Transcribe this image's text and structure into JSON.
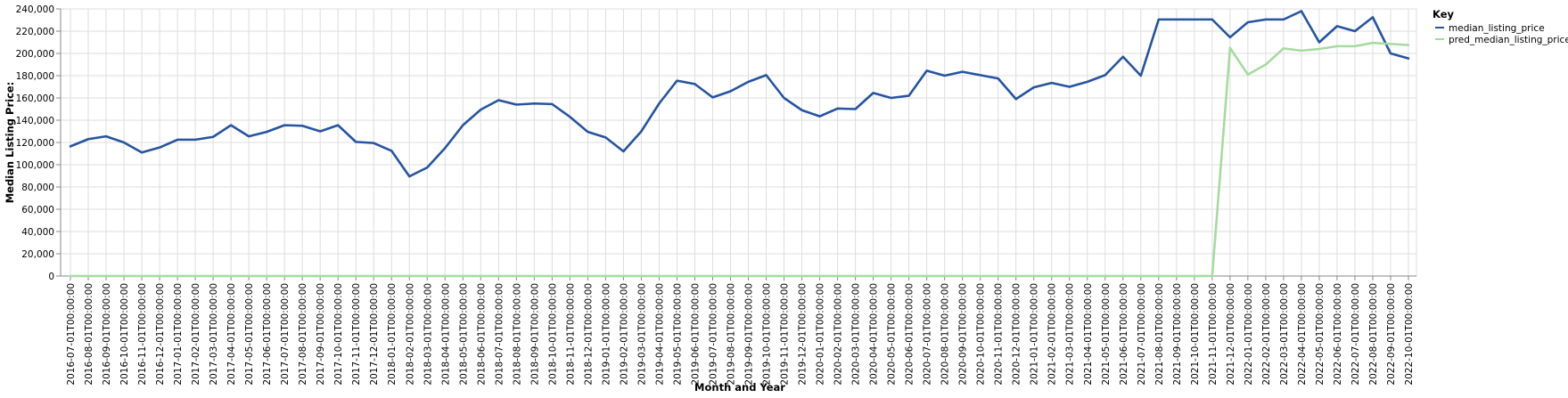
{
  "chart_data": {
    "type": "line",
    "xlabel": "Month and Year",
    "ylabel": "Median Listing Price:",
    "ylim": [
      0,
      240000
    ],
    "yticks": [
      "0",
      "20,000",
      "40,000",
      "60,000",
      "80,000",
      "100,000",
      "120,000",
      "140,000",
      "160,000",
      "180,000",
      "200,000",
      "220,000",
      "240,000"
    ],
    "grid": true,
    "legend": {
      "title": "Key",
      "position": "right"
    },
    "x": [
      "2016-07-01T00:00:00",
      "2016-08-01T00:00:00",
      "2016-09-01T00:00:00",
      "2016-10-01T00:00:00",
      "2016-11-01T00:00:00",
      "2016-12-01T00:00:00",
      "2017-01-01T00:00:00",
      "2017-02-01T00:00:00",
      "2017-03-01T00:00:00",
      "2017-04-01T00:00:00",
      "2017-05-01T00:00:00",
      "2017-06-01T00:00:00",
      "2017-07-01T00:00:00",
      "2017-08-01T00:00:00",
      "2017-09-01T00:00:00",
      "2017-10-01T00:00:00",
      "2017-11-01T00:00:00",
      "2017-12-01T00:00:00",
      "2018-01-01T00:00:00",
      "2018-02-01T00:00:00",
      "2018-03-01T00:00:00",
      "2018-04-01T00:00:00",
      "2018-05-01T00:00:00",
      "2018-06-01T00:00:00",
      "2018-07-01T00:00:00",
      "2018-08-01T00:00:00",
      "2018-09-01T00:00:00",
      "2018-10-01T00:00:00",
      "2018-11-01T00:00:00",
      "2018-12-01T00:00:00",
      "2019-01-01T00:00:00",
      "2019-02-01T00:00:00",
      "2019-03-01T00:00:00",
      "2019-04-01T00:00:00",
      "2019-05-01T00:00:00",
      "2019-06-01T00:00:00",
      "2019-07-01T00:00:00",
      "2019-08-01T00:00:00",
      "2019-09-01T00:00:00",
      "2019-10-01T00:00:00",
      "2019-11-01T00:00:00",
      "2019-12-01T00:00:00",
      "2020-01-01T00:00:00",
      "2020-02-01T00:00:00",
      "2020-03-01T00:00:00",
      "2020-04-01T00:00:00",
      "2020-05-01T00:00:00",
      "2020-06-01T00:00:00",
      "2020-07-01T00:00:00",
      "2020-08-01T00:00:00",
      "2020-09-01T00:00:00",
      "2020-10-01T00:00:00",
      "2020-11-01T00:00:00",
      "2020-12-01T00:00:00",
      "2021-01-01T00:00:00",
      "2021-02-01T00:00:00",
      "2021-03-01T00:00:00",
      "2021-04-01T00:00:00",
      "2021-05-01T00:00:00",
      "2021-06-01T00:00:00",
      "2021-07-01T00:00:00",
      "2021-08-01T00:00:00",
      "2021-09-01T00:00:00",
      "2021-10-01T00:00:00",
      "2021-11-01T00:00:00",
      "2021-12-01T00:00:00",
      "2022-01-01T00:00:00",
      "2022-02-01T00:00:00",
      "2022-03-01T00:00:00",
      "2022-04-01T00:00:00",
      "2022-05-01T00:00:00",
      "2022-06-01T00:00:00",
      "2022-07-01T00:00:00",
      "2022-08-01T00:00:00",
      "2022-09-01T00:00:00",
      "2022-10-01T00:00:00"
    ],
    "series": [
      {
        "name": "median_listing_price",
        "color": "#2654a0",
        "values": [
          116500,
          123000,
          125500,
          120000,
          111000,
          115500,
          122500,
          122500,
          125000,
          135500,
          125500,
          129500,
          135500,
          135000,
          130000,
          135500,
          120500,
          119500,
          112500,
          89500,
          97500,
          115000,
          135500,
          149500,
          158000,
          154000,
          155000,
          154500,
          143000,
          129500,
          124500,
          112000,
          130000,
          155000,
          175500,
          172500,
          160500,
          166000,
          174500,
          180500,
          160000,
          149000,
          143500,
          150500,
          150000,
          164500,
          160000,
          162000,
          184500,
          180000,
          183500,
          180500,
          177500,
          159000,
          169500,
          173500,
          170000,
          174500,
          180500,
          197000,
          180000,
          230500,
          230500,
          230500,
          230500,
          214500,
          228000,
          230500,
          230500,
          238000,
          210000,
          224500,
          220000,
          232500,
          200000,
          195500
        ]
      },
      {
        "name": "pred_median_listing_price",
        "color": "#a6dba0",
        "values": [
          0,
          0,
          0,
          0,
          0,
          0,
          0,
          0,
          0,
          0,
          0,
          0,
          0,
          0,
          0,
          0,
          0,
          0,
          0,
          0,
          0,
          0,
          0,
          0,
          0,
          0,
          0,
          0,
          0,
          0,
          0,
          0,
          0,
          0,
          0,
          0,
          0,
          0,
          0,
          0,
          0,
          0,
          0,
          0,
          0,
          0,
          0,
          0,
          0,
          0,
          0,
          0,
          0,
          0,
          0,
          0,
          0,
          0,
          0,
          0,
          0,
          0,
          0,
          0,
          0,
          205000,
          181000,
          190000,
          204500,
          202500,
          204000,
          206500,
          206500,
          209500,
          208500,
          207500
        ]
      }
    ]
  }
}
